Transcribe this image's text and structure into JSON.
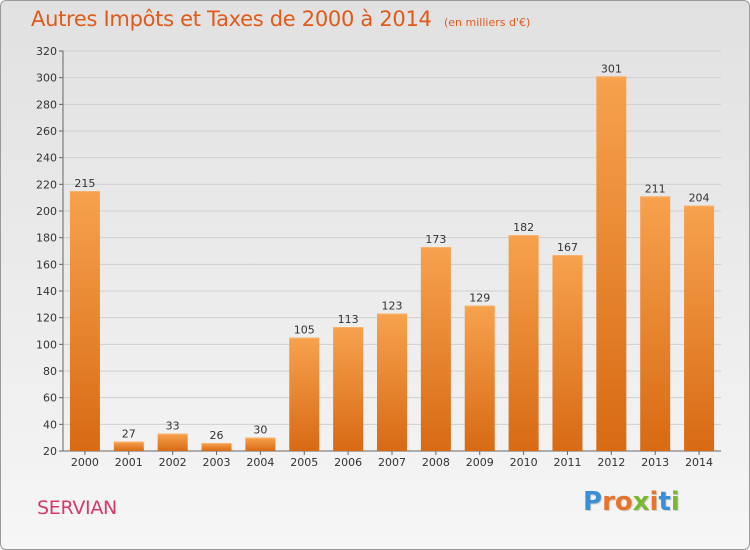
{
  "header": {
    "title": "Autres Impôts et Taxes de 2000 à 2014",
    "unit": "(en milliers d'€)"
  },
  "footer": {
    "city": "SERVIAN",
    "logo_text": "Proxiti"
  },
  "colors": {
    "title": "#e05a1a",
    "city": "#d63a6a",
    "bar_light": "#f7a24e",
    "bar_dark": "#d86a14"
  },
  "chart_data": {
    "type": "bar",
    "title": "Autres Impôts et Taxes de 2000 à 2014",
    "subtitle": "(en milliers d'€)",
    "xlabel": "",
    "ylabel": "",
    "categories": [
      "2000",
      "2001",
      "2002",
      "2003",
      "2004",
      "2005",
      "2006",
      "2007",
      "2008",
      "2009",
      "2010",
      "2011",
      "2012",
      "2013",
      "2014"
    ],
    "values": [
      215,
      27,
      33,
      26,
      30,
      105,
      113,
      123,
      173,
      129,
      182,
      167,
      301,
      211,
      204
    ],
    "ylim": [
      20,
      320
    ],
    "yticks": [
      20,
      40,
      60,
      80,
      100,
      120,
      140,
      160,
      180,
      200,
      220,
      240,
      260,
      280,
      300,
      320
    ],
    "grid": true
  }
}
